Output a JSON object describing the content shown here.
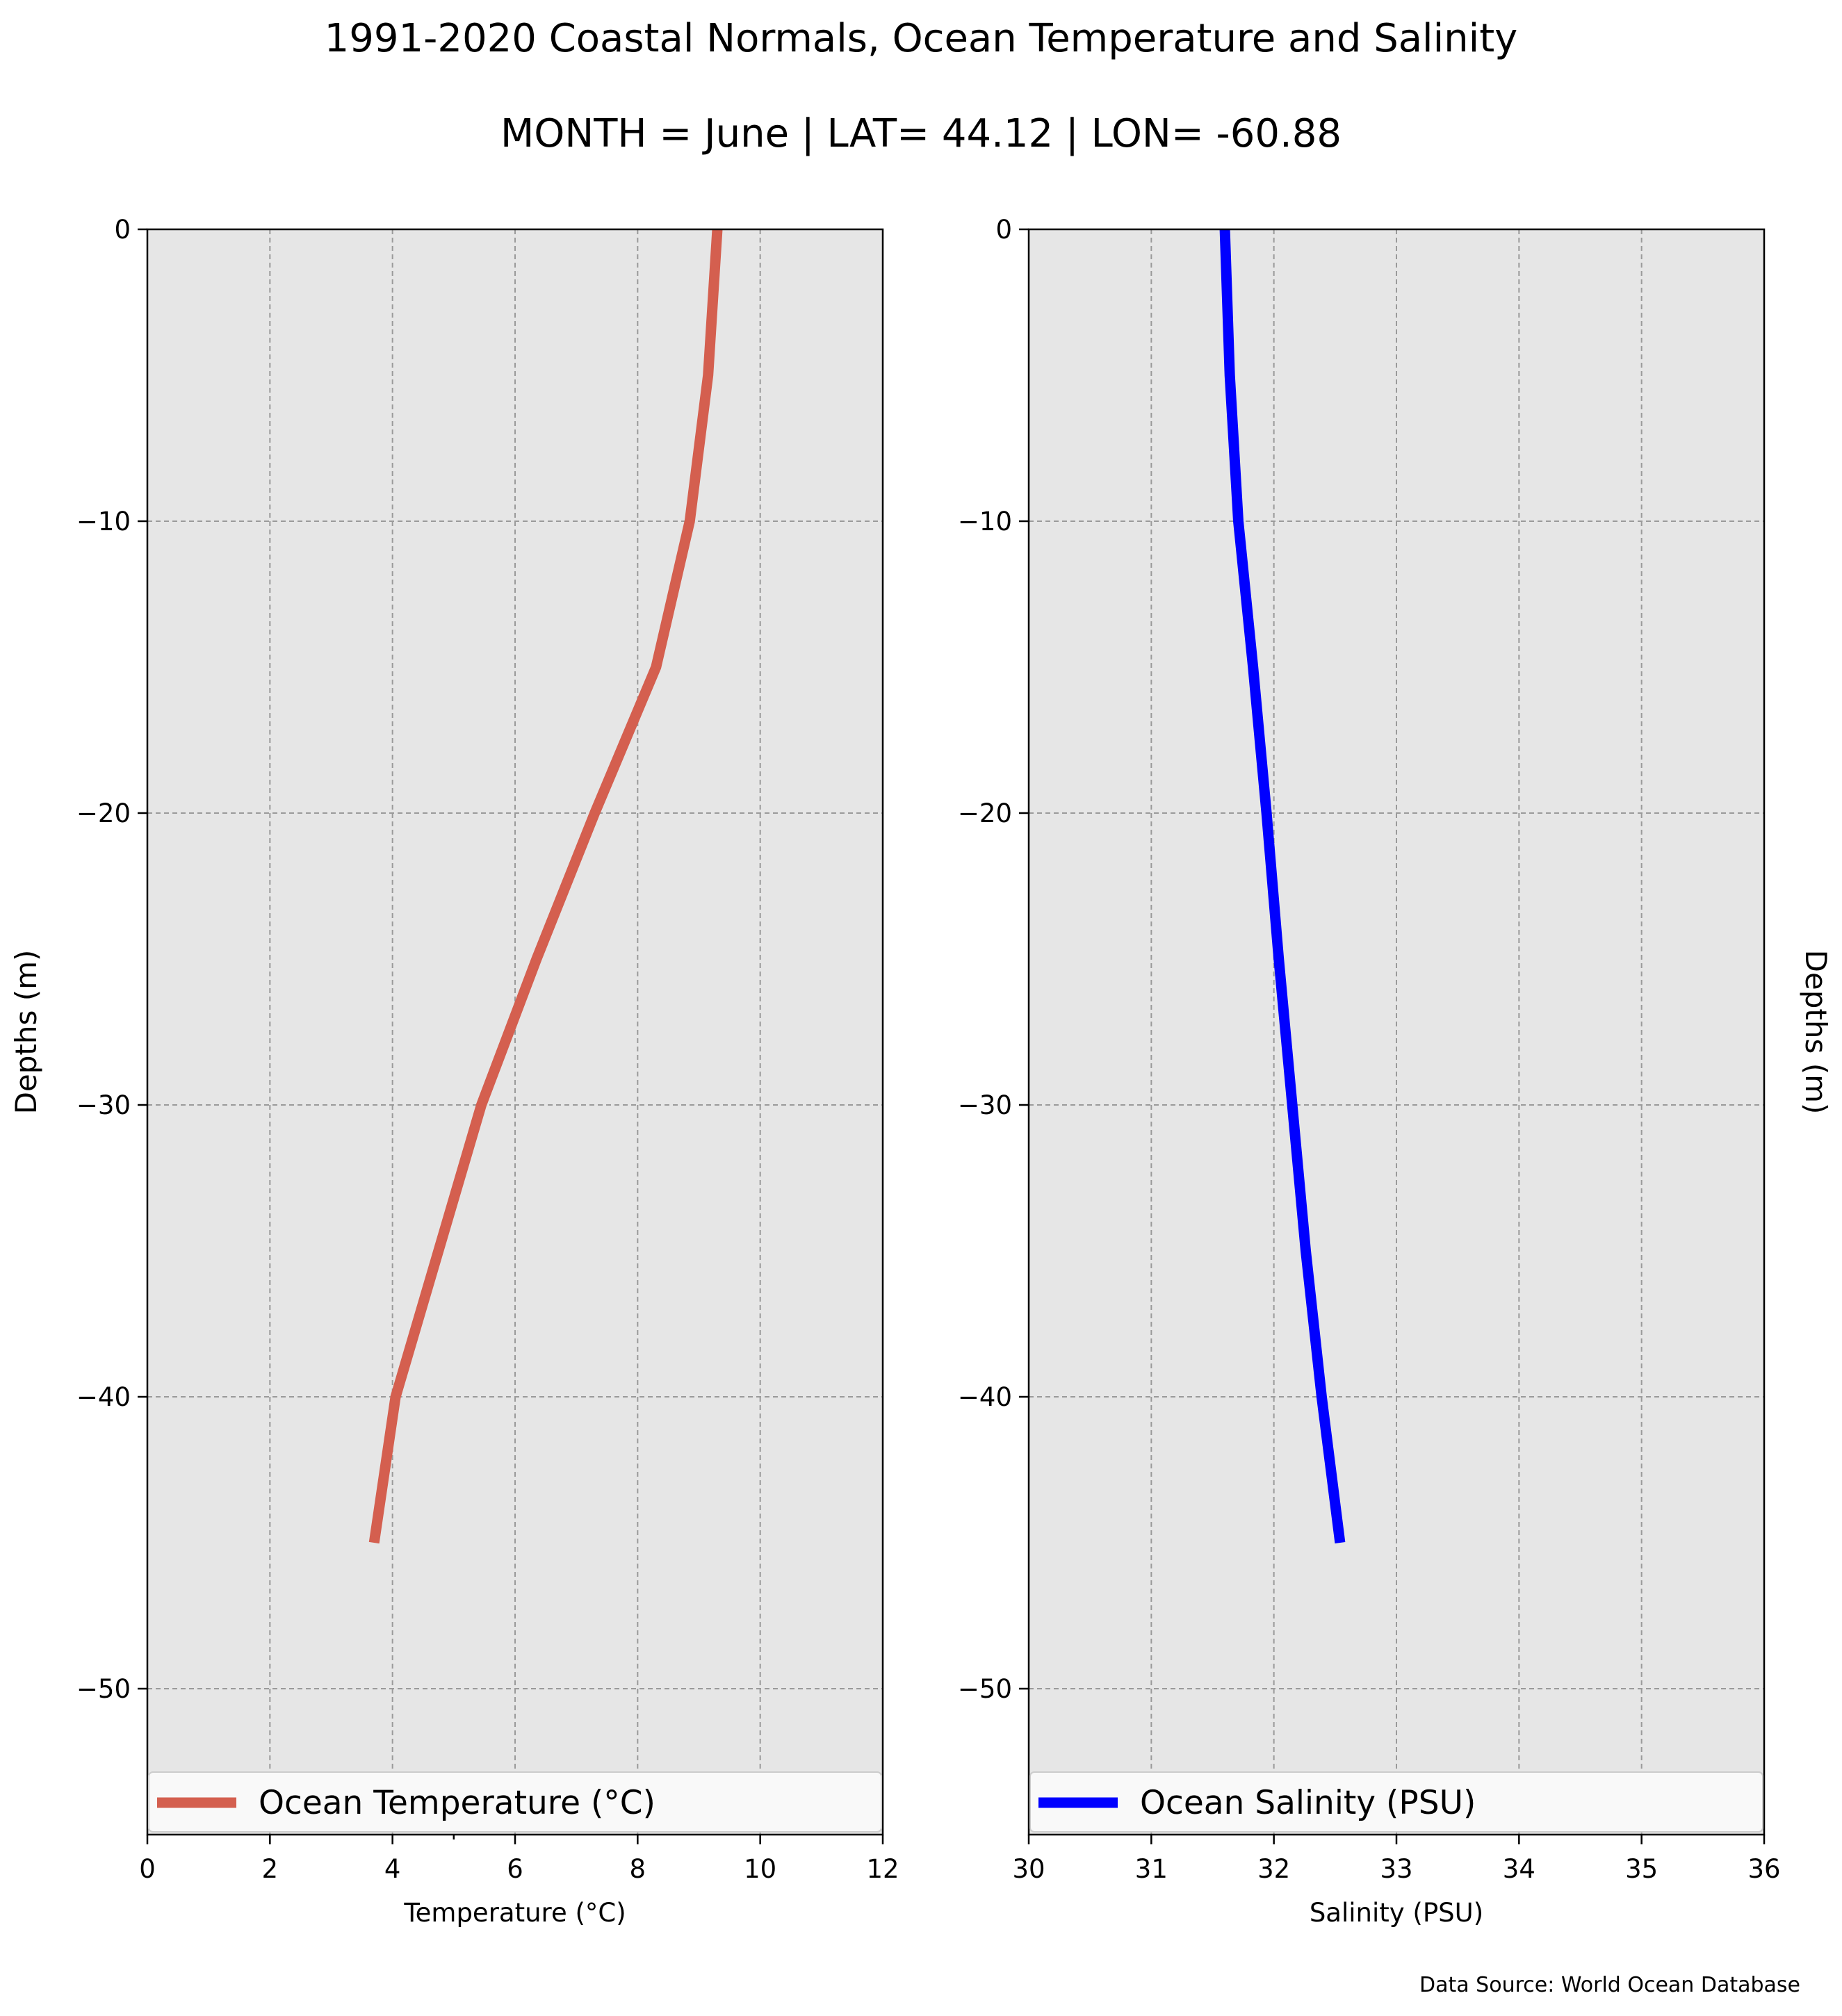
{
  "figure": {
    "title_line1": "1991-2020 Coastal Normals, Ocean Temperature and Salinity",
    "title_line2": "MONTH = June | LAT= 44.12 | LON= -60.88",
    "source": "Data Source: World Ocean Database",
    "colors": {
      "plot_background": "#e6e6e6",
      "grid": "#9a9a9a"
    }
  },
  "chart_data": [
    {
      "type": "line",
      "orientation": "vertical-profile",
      "xlabel": "Temperature (°C)",
      "ylabel": "Depths (m)",
      "ylabel_side": "left",
      "xlim": [
        0,
        12
      ],
      "ylim": [
        -55,
        0
      ],
      "xticks": [
        0,
        2,
        4,
        6,
        8,
        10,
        12
      ],
      "yticks": [
        0,
        -10,
        -20,
        -30,
        -40,
        -50
      ],
      "grid": true,
      "legend_position": "bottom",
      "series": [
        {
          "name": "Ocean Temperature (°C)",
          "color": "#d45f4f",
          "x": [
            9.3,
            9.15,
            8.85,
            8.3,
            7.3,
            6.35,
            5.45,
            4.75,
            4.05,
            3.7
          ],
          "y": [
            0,
            -5,
            -10,
            -15,
            -20,
            -25,
            -30,
            -35,
            -40,
            -45
          ]
        }
      ]
    },
    {
      "type": "line",
      "orientation": "vertical-profile",
      "xlabel": "Salinity (PSU)",
      "ylabel": "Depths (m)",
      "ylabel_side": "right",
      "xlim": [
        30,
        36
      ],
      "ylim": [
        -55,
        0
      ],
      "xticks": [
        30,
        31,
        32,
        33,
        34,
        35,
        36
      ],
      "yticks": [
        0,
        -10,
        -20,
        -30,
        -40,
        -50
      ],
      "grid": true,
      "legend_position": "bottom",
      "series": [
        {
          "name": "Ocean Salinity (PSU)",
          "color": "#0000ff",
          "x": [
            31.6,
            31.64,
            31.71,
            31.83,
            31.94,
            32.04,
            32.15,
            32.26,
            32.39,
            32.54
          ],
          "y": [
            0,
            -5,
            -10,
            -15,
            -20,
            -25,
            -30,
            -35,
            -40,
            -45
          ]
        }
      ]
    }
  ]
}
